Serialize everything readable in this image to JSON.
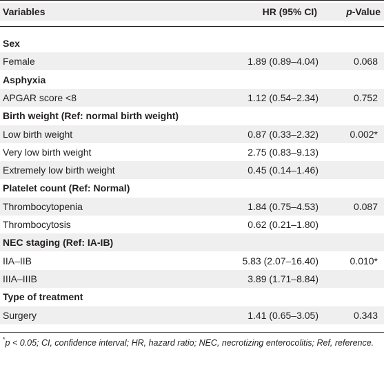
{
  "header": {
    "variables": "Variables",
    "hr": "HR (95% CI)",
    "p_italic": "p",
    "p_rest": "-Value"
  },
  "rows": [
    {
      "type": "section",
      "label": "Sex",
      "hr": "",
      "p": ""
    },
    {
      "type": "data",
      "label": "Female",
      "hr": "1.89 (0.89–4.04)",
      "p": "0.068"
    },
    {
      "type": "section",
      "label": "Asphyxia",
      "hr": "",
      "p": ""
    },
    {
      "type": "data",
      "label": "APGAR score <8",
      "hr": "1.12 (0.54–2.34)",
      "p": "0.752"
    },
    {
      "type": "section",
      "label": "Birth weight (Ref: normal birth weight)",
      "hr": "",
      "p": ""
    },
    {
      "type": "data",
      "label": "Low birth weight",
      "hr": "0.87 (0.33–2.32)",
      "p": "0.002*"
    },
    {
      "type": "data",
      "label": "Very low birth weight",
      "hr": "2.75 (0.83–9.13)",
      "p": ""
    },
    {
      "type": "data",
      "label": "Extremely low birth weight",
      "hr": "0.45 (0.14–1.46)",
      "p": ""
    },
    {
      "type": "section",
      "label": "Platelet count (Ref: Normal)",
      "hr": "",
      "p": ""
    },
    {
      "type": "data",
      "label": "Thrombocytopenia",
      "hr": "1.84 (0.75–4.53)",
      "p": "0.087"
    },
    {
      "type": "data",
      "label": "Thrombocytosis",
      "hr": "0.62 (0.21–1.80)",
      "p": ""
    },
    {
      "type": "section",
      "label": "NEC staging (Ref: IA-IB)",
      "hr": "",
      "p": ""
    },
    {
      "type": "data",
      "label": "IIA–IIB",
      "hr": "5.83 (2.07–16.40)",
      "p": "0.010*"
    },
    {
      "type": "data",
      "label": "IIIA–IIIB",
      "hr": "3.89 (1.71–8.84)",
      "p": ""
    },
    {
      "type": "section",
      "label": "Type of treatment",
      "hr": "",
      "p": ""
    },
    {
      "type": "data",
      "label": "Surgery",
      "hr": "1.41 (0.65–3.05)",
      "p": "0.343"
    }
  ],
  "footnote": {
    "marker": "*",
    "text": "p < 0.05; CI, confidence interval; HR, hazard ratio; NEC, necrotizing enterocolitis; Ref, reference."
  },
  "colors": {
    "band": "#efefef",
    "text": "#231f20",
    "rule": "#231f20"
  }
}
